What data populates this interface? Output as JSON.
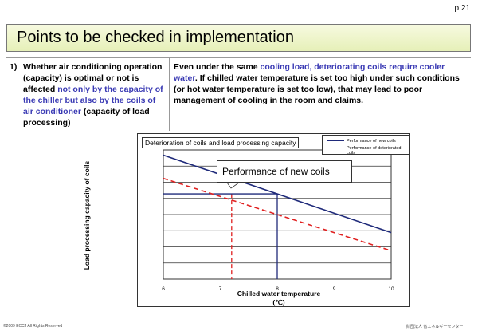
{
  "page_number": "p.21",
  "title": "Points to be checked in implementation",
  "left": {
    "num": "1)",
    "t1": "Whether air conditioning operation (capacity) is optimal or not is affected ",
    "t2": "not only by the capacity of the chiller but also by the coils of air conditioner",
    "t3": " (capacity of load processing)"
  },
  "right": {
    "t1": "Even under the same ",
    "t2": "cooling load, deteriorating coils require cooler water",
    "t3": ". If chilled water temperature is set too high under such conditions (or hot water temperature is set too low), that may lead to poor management of cooling in the room and claims."
  },
  "chart_data": {
    "type": "line",
    "title": "Deterioration of coils and load processing capacity",
    "xlabel": "Chilled water temperature",
    "xunit": "(℃)",
    "ylabel": "Load processing capacity of coils",
    "xlim": [
      6,
      10
    ],
    "ylim": [
      0,
      10
    ],
    "xticks": [
      "6",
      "7",
      "8",
      "9",
      "10"
    ],
    "grid": true,
    "series": [
      {
        "name": "Performance of new coils",
        "color": "#1f2a7a",
        "dash": false,
        "x": [
          6,
          10
        ],
        "y": [
          9.6,
          3.6
        ]
      },
      {
        "name": "Performance of deteriorated coils",
        "color": "#e02020",
        "dash": true,
        "x": [
          6,
          10
        ],
        "y": [
          7.8,
          2.2
        ]
      }
    ],
    "guides": [
      {
        "color": "#1f2a7a",
        "dash": false,
        "x": 8,
        "y": 6.6
      },
      {
        "color": "#e02020",
        "dash": true,
        "x": 7.2,
        "y": 6.6
      }
    ],
    "annotation": "Performance of new coils"
  },
  "footer": {
    "left": "©2009  ECCJ All Rights Reserved",
    "right": "財団法人 省エネルギーセンター"
  }
}
